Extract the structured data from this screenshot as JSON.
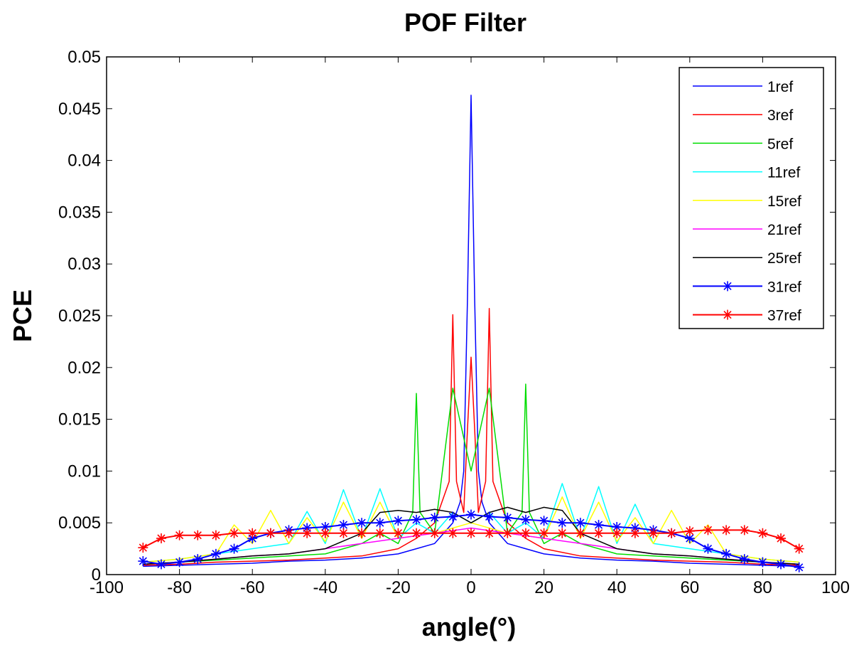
{
  "chart_data": {
    "type": "line",
    "title": "POF Filter",
    "xlabel": "angle(°)",
    "ylabel": "PCE",
    "xlim": [
      -100,
      100
    ],
    "ylim": [
      0,
      0.05
    ],
    "xticks": [
      "-100",
      "-80",
      "-60",
      "-40",
      "-20",
      "0",
      "20",
      "40",
      "60",
      "80",
      "100"
    ],
    "yticks": [
      "0",
      "0.005",
      "0.01",
      "0.015",
      "0.02",
      "0.025",
      "0.03",
      "0.035",
      "0.04",
      "0.045",
      "0.05"
    ],
    "grid": false,
    "legend_position": "top-right",
    "series": [
      {
        "name": "1ref",
        "color": "#0000ff",
        "marker": "none",
        "x": [
          -90,
          -80,
          -70,
          -60,
          -50,
          -40,
          -30,
          -20,
          -15,
          -10,
          -5,
          -3,
          -2,
          -1,
          0,
          1,
          2,
          3,
          5,
          10,
          15,
          20,
          30,
          40,
          50,
          60,
          70,
          80,
          90
        ],
        "y": [
          0.0008,
          0.0009,
          0.001,
          0.0011,
          0.0013,
          0.0014,
          0.0016,
          0.002,
          0.0025,
          0.003,
          0.005,
          0.007,
          0.01,
          0.0265,
          0.0463,
          0.0265,
          0.01,
          0.007,
          0.005,
          0.003,
          0.0025,
          0.002,
          0.0016,
          0.0014,
          0.0013,
          0.0011,
          0.001,
          0.0009,
          0.0008
        ]
      },
      {
        "name": "3ref",
        "color": "#ff0000",
        "marker": "none",
        "x": [
          -90,
          -80,
          -70,
          -60,
          -50,
          -40,
          -30,
          -20,
          -15,
          -10,
          -6,
          -5,
          -4,
          -2,
          -1,
          0,
          1,
          2,
          4,
          5,
          6,
          10,
          15,
          20,
          30,
          40,
          50,
          60,
          70,
          80,
          90
        ],
        "y": [
          0.0009,
          0.001,
          0.0012,
          0.0013,
          0.0014,
          0.0016,
          0.0018,
          0.0025,
          0.0035,
          0.005,
          0.009,
          0.0251,
          0.009,
          0.006,
          0.014,
          0.021,
          0.014,
          0.006,
          0.009,
          0.0257,
          0.009,
          0.005,
          0.0035,
          0.0025,
          0.0018,
          0.0016,
          0.0014,
          0.0013,
          0.0012,
          0.001,
          0.0009
        ]
      },
      {
        "name": "5ref",
        "color": "#00dd00",
        "marker": "none",
        "x": [
          -90,
          -80,
          -70,
          -60,
          -50,
          -40,
          -30,
          -25,
          -20,
          -16,
          -15,
          -14,
          -10,
          -5,
          0,
          5,
          10,
          14,
          15,
          16,
          20,
          25,
          30,
          40,
          50,
          60,
          70,
          80,
          90
        ],
        "y": [
          0.001,
          0.0012,
          0.0014,
          0.0016,
          0.0018,
          0.002,
          0.003,
          0.004,
          0.003,
          0.006,
          0.0175,
          0.006,
          0.004,
          0.018,
          0.01,
          0.018,
          0.004,
          0.006,
          0.0184,
          0.006,
          0.003,
          0.004,
          0.003,
          0.002,
          0.0018,
          0.0016,
          0.0014,
          0.0012,
          0.001
        ]
      },
      {
        "name": "11ref",
        "color": "#00ffff",
        "marker": "none",
        "x": [
          -90,
          -80,
          -70,
          -60,
          -50,
          -45,
          -40,
          -35,
          -30,
          -25,
          -20,
          -15,
          -10,
          -5,
          0,
          5,
          10,
          15,
          20,
          25,
          30,
          35,
          40,
          45,
          50,
          60,
          70,
          80,
          90
        ],
        "y": [
          0.0012,
          0.0015,
          0.002,
          0.0025,
          0.003,
          0.0061,
          0.003,
          0.0082,
          0.0035,
          0.0083,
          0.0035,
          0.005,
          0.004,
          0.006,
          0.005,
          0.006,
          0.004,
          0.005,
          0.0035,
          0.0088,
          0.0035,
          0.0085,
          0.003,
          0.0068,
          0.003,
          0.0025,
          0.002,
          0.0015,
          0.0012
        ]
      },
      {
        "name": "15ref",
        "color": "#ffff00",
        "marker": "none",
        "x": [
          -90,
          -80,
          -70,
          -65,
          -60,
          -55,
          -50,
          -45,
          -40,
          -35,
          -30,
          -25,
          -20,
          -10,
          0,
          10,
          20,
          25,
          30,
          35,
          40,
          45,
          50,
          55,
          60,
          65,
          70,
          80,
          90
        ],
        "y": [
          0.0012,
          0.0015,
          0.002,
          0.0048,
          0.003,
          0.0062,
          0.003,
          0.0055,
          0.0032,
          0.007,
          0.0035,
          0.007,
          0.0035,
          0.004,
          0.005,
          0.004,
          0.0035,
          0.0075,
          0.0035,
          0.007,
          0.0032,
          0.0055,
          0.003,
          0.0062,
          0.003,
          0.0048,
          0.002,
          0.0015,
          0.0012
        ]
      },
      {
        "name": "21ref",
        "color": "#ff00ff",
        "marker": "none",
        "x": [
          -90,
          -80,
          -70,
          -60,
          -50,
          -40,
          -30,
          -20,
          -10,
          0,
          10,
          20,
          30,
          40,
          50,
          60,
          70,
          80,
          90
        ],
        "y": [
          0.001,
          0.0012,
          0.0015,
          0.0018,
          0.002,
          0.0025,
          0.003,
          0.0035,
          0.004,
          0.0045,
          0.004,
          0.0035,
          0.003,
          0.0025,
          0.002,
          0.0018,
          0.0015,
          0.0012,
          0.001
        ]
      },
      {
        "name": "25ref",
        "color": "#000000",
        "marker": "none",
        "x": [
          -90,
          -80,
          -70,
          -60,
          -50,
          -40,
          -30,
          -25,
          -20,
          -15,
          -10,
          -5,
          0,
          5,
          10,
          15,
          20,
          25,
          30,
          40,
          50,
          60,
          70,
          80,
          90
        ],
        "y": [
          0.001,
          0.0012,
          0.0015,
          0.0018,
          0.002,
          0.0025,
          0.004,
          0.006,
          0.0062,
          0.006,
          0.0063,
          0.006,
          0.005,
          0.006,
          0.0065,
          0.006,
          0.0065,
          0.0062,
          0.004,
          0.0025,
          0.002,
          0.0018,
          0.0015,
          0.0012,
          0.001
        ]
      },
      {
        "name": "31ref",
        "color": "#0000ff",
        "marker": "star",
        "x": [
          -90,
          -85,
          -80,
          -75,
          -70,
          -65,
          -60,
          -55,
          -50,
          -45,
          -40,
          -35,
          -30,
          -25,
          -20,
          -15,
          -10,
          -5,
          0,
          5,
          10,
          15,
          20,
          25,
          30,
          35,
          40,
          45,
          50,
          55,
          60,
          65,
          70,
          75,
          80,
          85,
          90
        ],
        "y": [
          0.0013,
          0.001,
          0.0012,
          0.0015,
          0.002,
          0.0025,
          0.0035,
          0.004,
          0.0043,
          0.0045,
          0.0046,
          0.0048,
          0.005,
          0.005,
          0.0052,
          0.0053,
          0.0055,
          0.0056,
          0.0058,
          0.0056,
          0.0055,
          0.0053,
          0.0052,
          0.005,
          0.005,
          0.0048,
          0.0046,
          0.0045,
          0.0043,
          0.004,
          0.0035,
          0.0025,
          0.002,
          0.0015,
          0.0012,
          0.001,
          0.0007
        ]
      },
      {
        "name": "37ref",
        "color": "#ff0000",
        "marker": "star",
        "x": [
          -90,
          -85,
          -80,
          -75,
          -70,
          -65,
          -60,
          -55,
          -50,
          -45,
          -40,
          -35,
          -30,
          -25,
          -20,
          -15,
          -10,
          -5,
          0,
          5,
          10,
          15,
          20,
          25,
          30,
          35,
          40,
          45,
          50,
          55,
          60,
          65,
          70,
          75,
          80,
          85,
          90
        ],
        "y": [
          0.0026,
          0.0035,
          0.0038,
          0.0038,
          0.0038,
          0.004,
          0.004,
          0.004,
          0.004,
          0.004,
          0.004,
          0.004,
          0.004,
          0.004,
          0.004,
          0.004,
          0.004,
          0.004,
          0.004,
          0.004,
          0.004,
          0.004,
          0.004,
          0.004,
          0.004,
          0.004,
          0.004,
          0.004,
          0.004,
          0.004,
          0.0042,
          0.0043,
          0.0043,
          0.0043,
          0.004,
          0.0035,
          0.0025
        ]
      }
    ]
  }
}
